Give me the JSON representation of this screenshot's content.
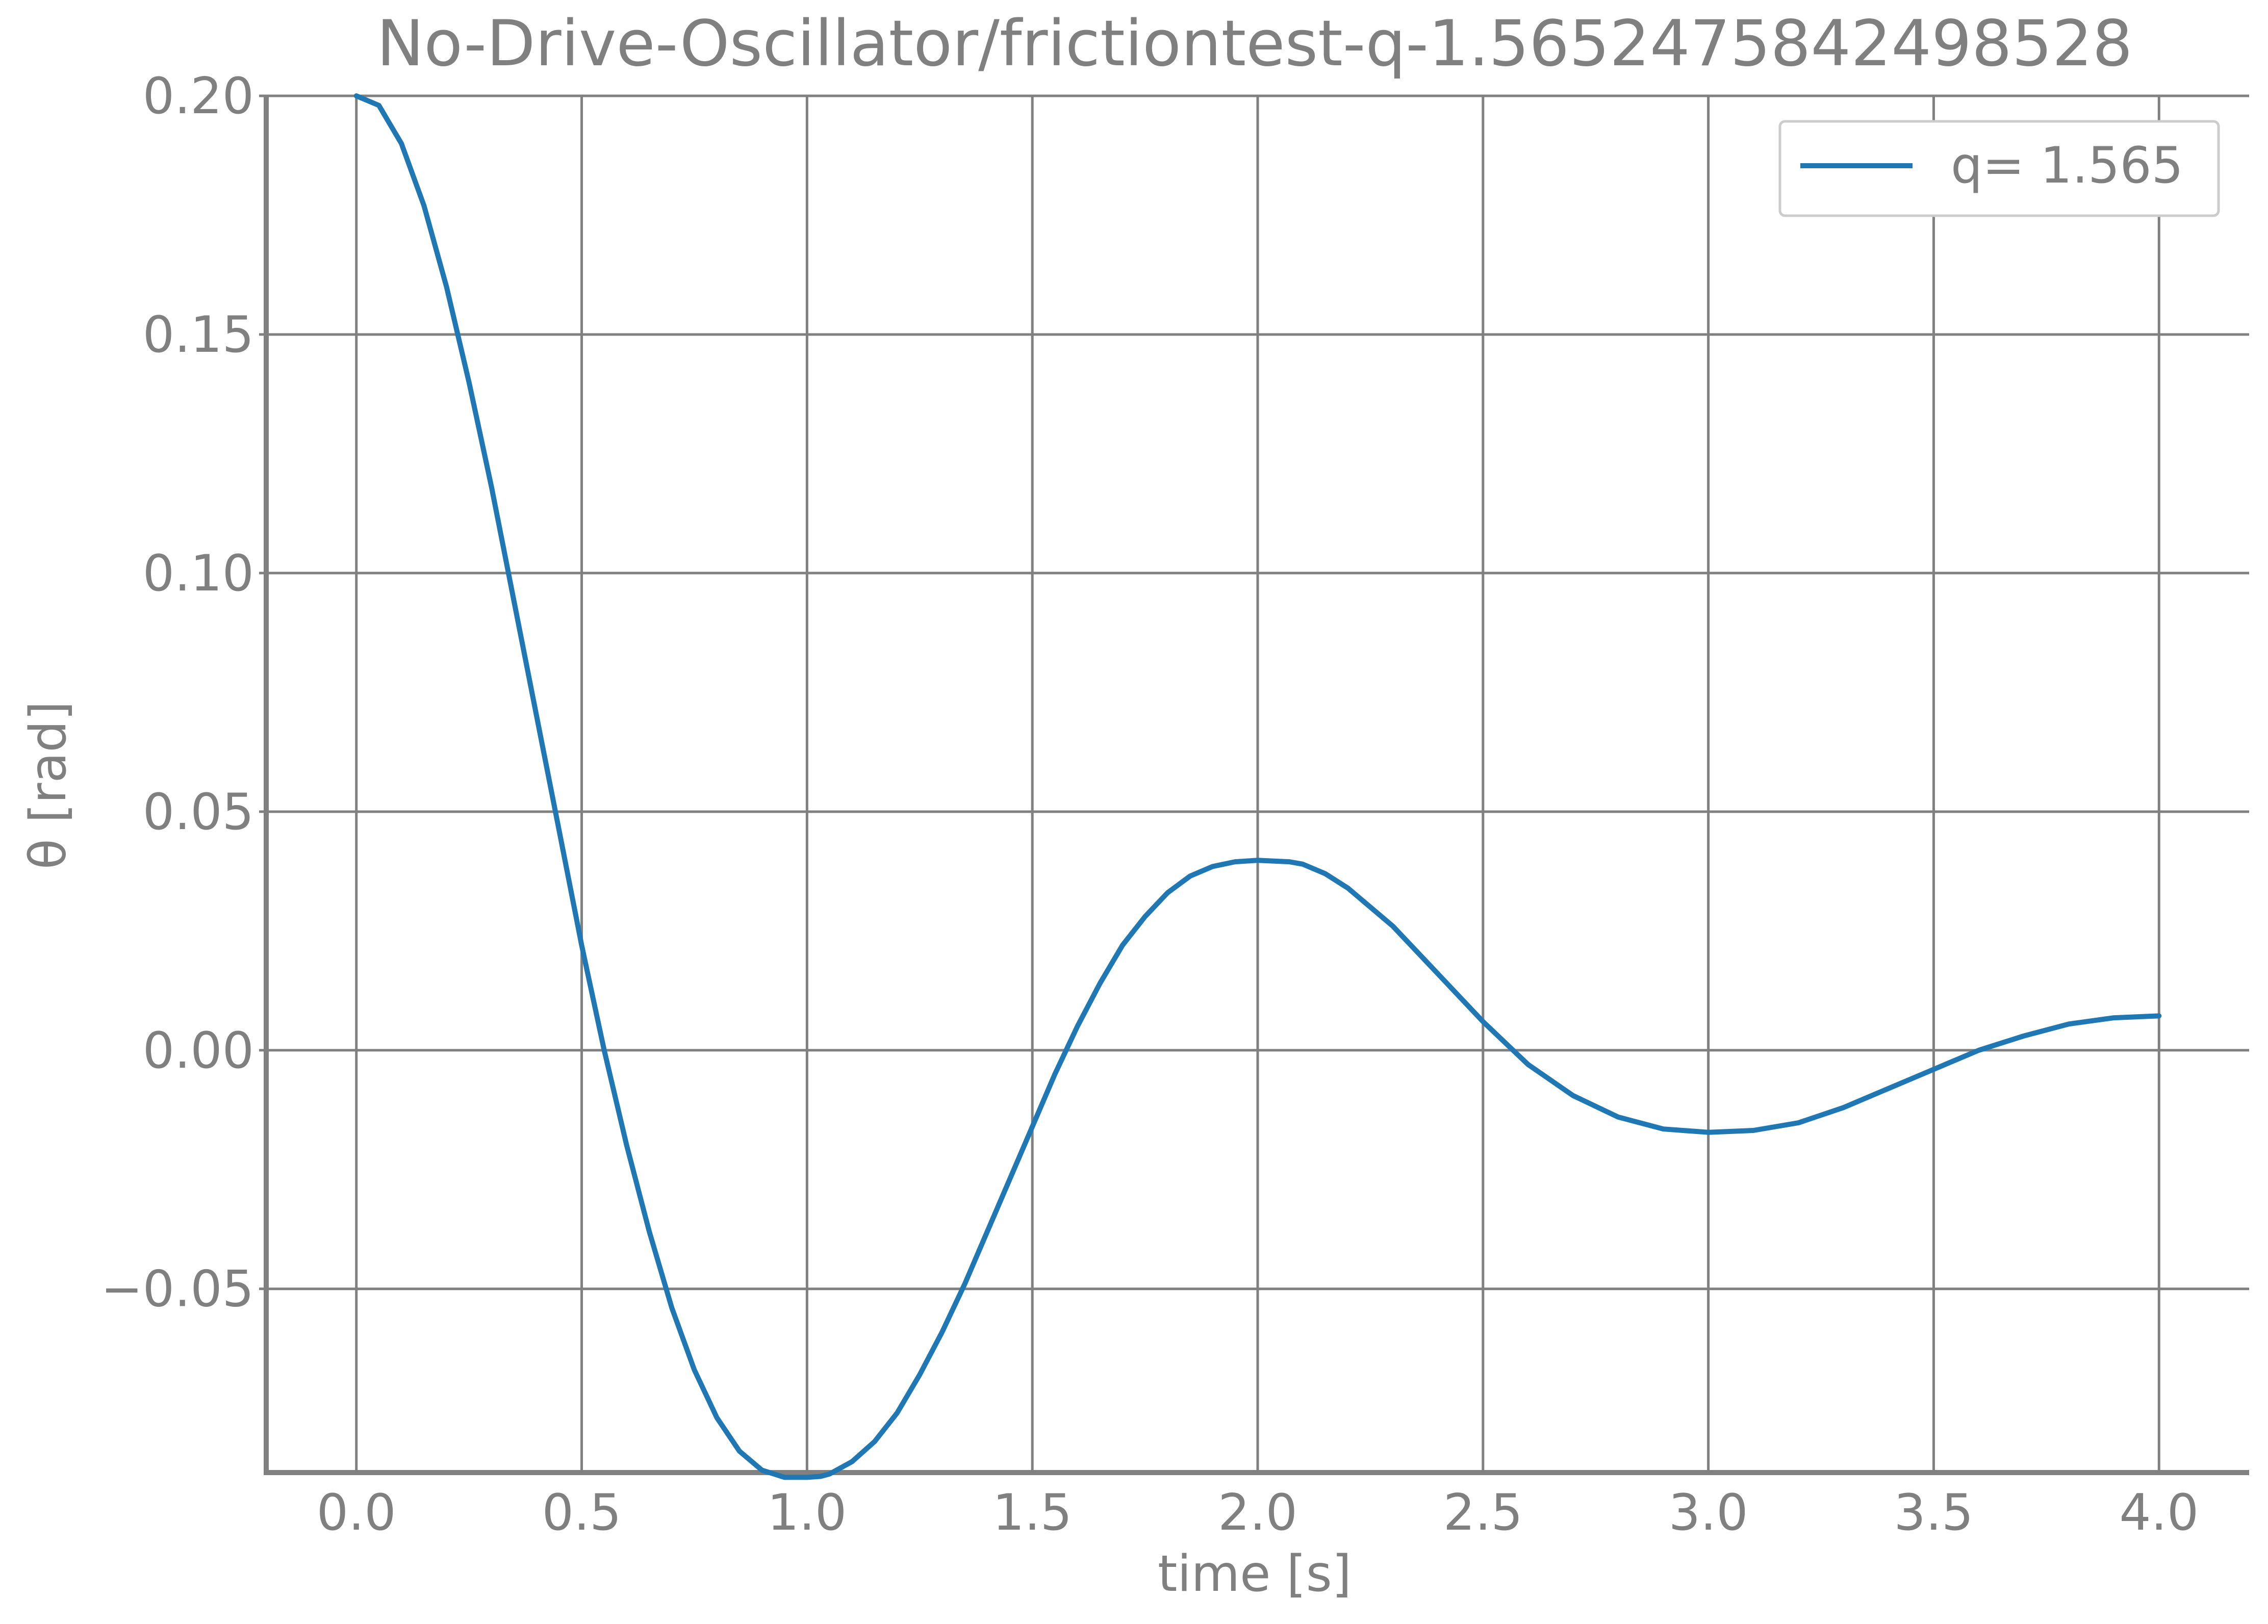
{
  "chart_data": {
    "type": "line",
    "title": "No-Drive-Oscillator/frictiontest-q-1.5652475842498528",
    "xlabel": "time [s]",
    "ylabel": "θ [rad]",
    "xlim": [
      -0.2,
      4.2
    ],
    "ylim": [
      -0.0885,
      0.2
    ],
    "x_ticks": [
      0.0,
      0.5,
      1.0,
      1.5,
      2.0,
      2.5,
      3.0,
      3.5,
      4.0
    ],
    "x_tick_labels": [
      "0.0",
      "0.5",
      "1.0",
      "1.5",
      "2.0",
      "2.5",
      "3.0",
      "3.5",
      "4.0"
    ],
    "y_ticks": [
      -0.05,
      0.0,
      0.05,
      0.1,
      0.15,
      0.2
    ],
    "y_tick_labels": [
      "−0.05",
      "0.00",
      "0.05",
      "0.10",
      "0.15",
      "0.20"
    ],
    "grid": true,
    "legend_position": "top-right",
    "series": [
      {
        "name": "q= 1.565",
        "color": "#1f77b4",
        "x": [
          0.0,
          0.05,
          0.1,
          0.15,
          0.2,
          0.25,
          0.3,
          0.35,
          0.4,
          0.45,
          0.5,
          0.55,
          0.6,
          0.65,
          0.7,
          0.75,
          0.8,
          0.85,
          0.9,
          0.95,
          1.0,
          1.03,
          1.05,
          1.1,
          1.15,
          1.2,
          1.25,
          1.3,
          1.35,
          1.4,
          1.45,
          1.5,
          1.55,
          1.6,
          1.65,
          1.7,
          1.75,
          1.8,
          1.85,
          1.9,
          1.95,
          2.0,
          2.07,
          2.1,
          2.15,
          2.2,
          2.3,
          2.4,
          2.5,
          2.6,
          2.7,
          2.8,
          2.9,
          3.0,
          3.1,
          3.2,
          3.3,
          3.4,
          3.5,
          3.6,
          3.7,
          3.8,
          3.9,
          4.0
        ],
        "y": [
          0.2,
          0.198,
          0.19,
          0.177,
          0.16,
          0.14,
          0.118,
          0.094,
          0.07,
          0.046,
          0.022,
          0.0,
          -0.02,
          -0.038,
          -0.054,
          -0.067,
          -0.077,
          -0.084,
          -0.088,
          -0.0895,
          -0.0895,
          -0.0893,
          -0.0888,
          -0.0862,
          -0.082,
          -0.076,
          -0.068,
          -0.059,
          -0.049,
          -0.038,
          -0.027,
          -0.016,
          -0.005,
          0.005,
          0.014,
          0.022,
          0.028,
          0.033,
          0.0365,
          0.0385,
          0.0395,
          0.0398,
          0.0395,
          0.039,
          0.037,
          0.034,
          0.026,
          0.016,
          0.006,
          -0.003,
          -0.0095,
          -0.014,
          -0.0165,
          -0.0172,
          -0.0168,
          -0.0152,
          -0.012,
          -0.008,
          -0.004,
          0.0,
          0.003,
          0.0055,
          0.0068,
          0.0072
        ]
      }
    ]
  }
}
